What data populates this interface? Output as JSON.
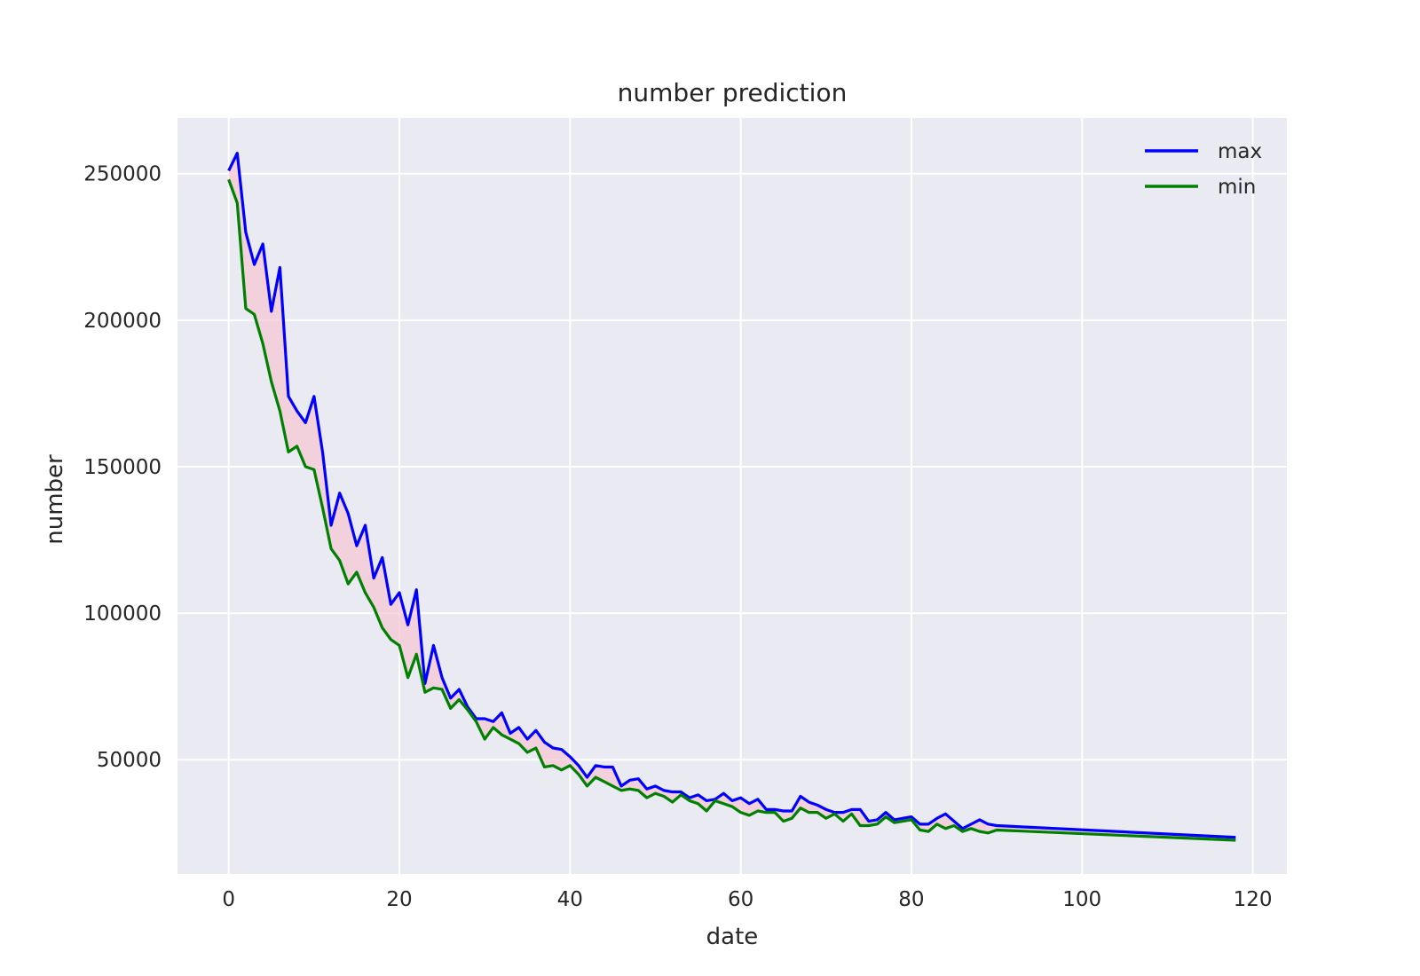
{
  "chart_data": {
    "type": "line",
    "title": "number prediction",
    "xlabel": "date",
    "ylabel": "number",
    "xlim": [
      -6,
      124
    ],
    "ylim": [
      11000,
      269000
    ],
    "xticks": [
      0,
      20,
      40,
      60,
      80,
      100,
      120
    ],
    "yticks": [
      50000,
      100000,
      150000,
      200000,
      250000
    ],
    "grid": true,
    "legend_position": "top-right",
    "band_fill": "between max and min",
    "colors": {
      "max": "#0000ff",
      "min": "#008000",
      "band": "#f5c8d4",
      "background": "#eaeaf2",
      "grid": "#ffffff"
    },
    "x": [
      0,
      1,
      2,
      3,
      4,
      5,
      6,
      7,
      8,
      9,
      10,
      11,
      12,
      13,
      14,
      15,
      16,
      17,
      18,
      19,
      20,
      21,
      22,
      23,
      24,
      25,
      26,
      27,
      28,
      29,
      30,
      31,
      32,
      33,
      34,
      35,
      36,
      37,
      38,
      39,
      40,
      41,
      42,
      43,
      44,
      45,
      46,
      47,
      48,
      49,
      50,
      51,
      52,
      53,
      54,
      55,
      56,
      57,
      58,
      59,
      60,
      61,
      62,
      63,
      64,
      65,
      66,
      67,
      68,
      69,
      70,
      71,
      72,
      73,
      74,
      75,
      76,
      77,
      78,
      79,
      80,
      81,
      82,
      83,
      84,
      85,
      86,
      87,
      88,
      89,
      90,
      118
    ],
    "series": [
      {
        "name": "max",
        "values": [
          251000,
          257000,
          230000,
          219000,
          226000,
          203000,
          218000,
          174000,
          169000,
          165000,
          174000,
          155000,
          130000,
          141000,
          134000,
          123000,
          130000,
          112000,
          119000,
          103000,
          107000,
          96000,
          108000,
          76000,
          89000,
          78000,
          71000,
          74000,
          68000,
          64000,
          64000,
          63000,
          66000,
          59000,
          61000,
          57000,
          60000,
          56000,
          54000,
          53500,
          51000,
          48000,
          44000,
          48000,
          47500,
          47500,
          41000,
          43000,
          43500,
          40000,
          41000,
          39500,
          39000,
          39000,
          37000,
          38000,
          36000,
          36500,
          38500,
          36000,
          37000,
          35000,
          36500,
          33000,
          33000,
          32500,
          32500,
          37500,
          35500,
          34500,
          33000,
          32000,
          32000,
          33000,
          33000,
          29000,
          29500,
          32000,
          29500,
          30000,
          30500,
          28000,
          28000,
          30000,
          31500,
          29000,
          26500,
          28000,
          29500,
          28000,
          27500,
          23500
        ]
      },
      {
        "name": "min",
        "values": [
          248000,
          240000,
          204000,
          202000,
          192000,
          179000,
          169000,
          155000,
          157000,
          150000,
          149000,
          136000,
          122000,
          118000,
          110000,
          114000,
          107000,
          102000,
          95000,
          91000,
          89000,
          78000,
          86000,
          73000,
          74500,
          74000,
          67500,
          70500,
          67000,
          63000,
          57000,
          61000,
          58500,
          57000,
          55500,
          52500,
          54000,
          47500,
          48000,
          46500,
          48000,
          45000,
          41000,
          44000,
          42500,
          41000,
          39500,
          40000,
          39500,
          37000,
          38500,
          37500,
          35500,
          38000,
          36000,
          35000,
          32500,
          36000,
          35000,
          34000,
          32000,
          31000,
          32500,
          32000,
          32000,
          29000,
          30000,
          33500,
          32000,
          32000,
          30000,
          31500,
          29000,
          31500,
          27500,
          27500,
          28000,
          30500,
          28500,
          29000,
          29500,
          26000,
          25500,
          28000,
          26500,
          27500,
          25500,
          26500,
          25500,
          25000,
          26000,
          22500
        ]
      }
    ]
  }
}
